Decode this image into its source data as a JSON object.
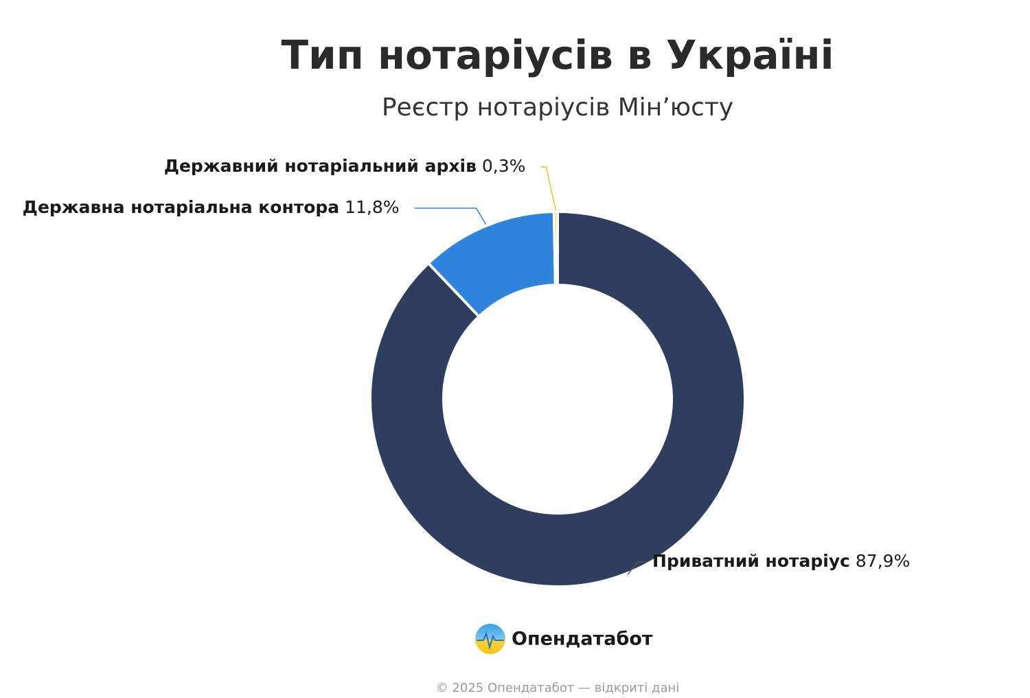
{
  "chart_data": {
    "type": "donut",
    "title": "Тип нотаріусів в Україні",
    "subtitle": "Реєстр нотаріусів Мінʼюсту",
    "categories": [
      "Приватний нотаріус",
      "Державна нотаріальна контора",
      "Державний нотаріальний архів"
    ],
    "values": [
      87.9,
      11.8,
      0.3
    ],
    "value_labels": [
      "87,9%",
      "11,8%",
      "0,3%"
    ],
    "colors": [
      "#2f3d5e",
      "#2e84dc",
      "#f2c21b"
    ],
    "logo_text": "Опендатабот",
    "footer": "© 2025 Опендатабот — відкриті дані"
  }
}
